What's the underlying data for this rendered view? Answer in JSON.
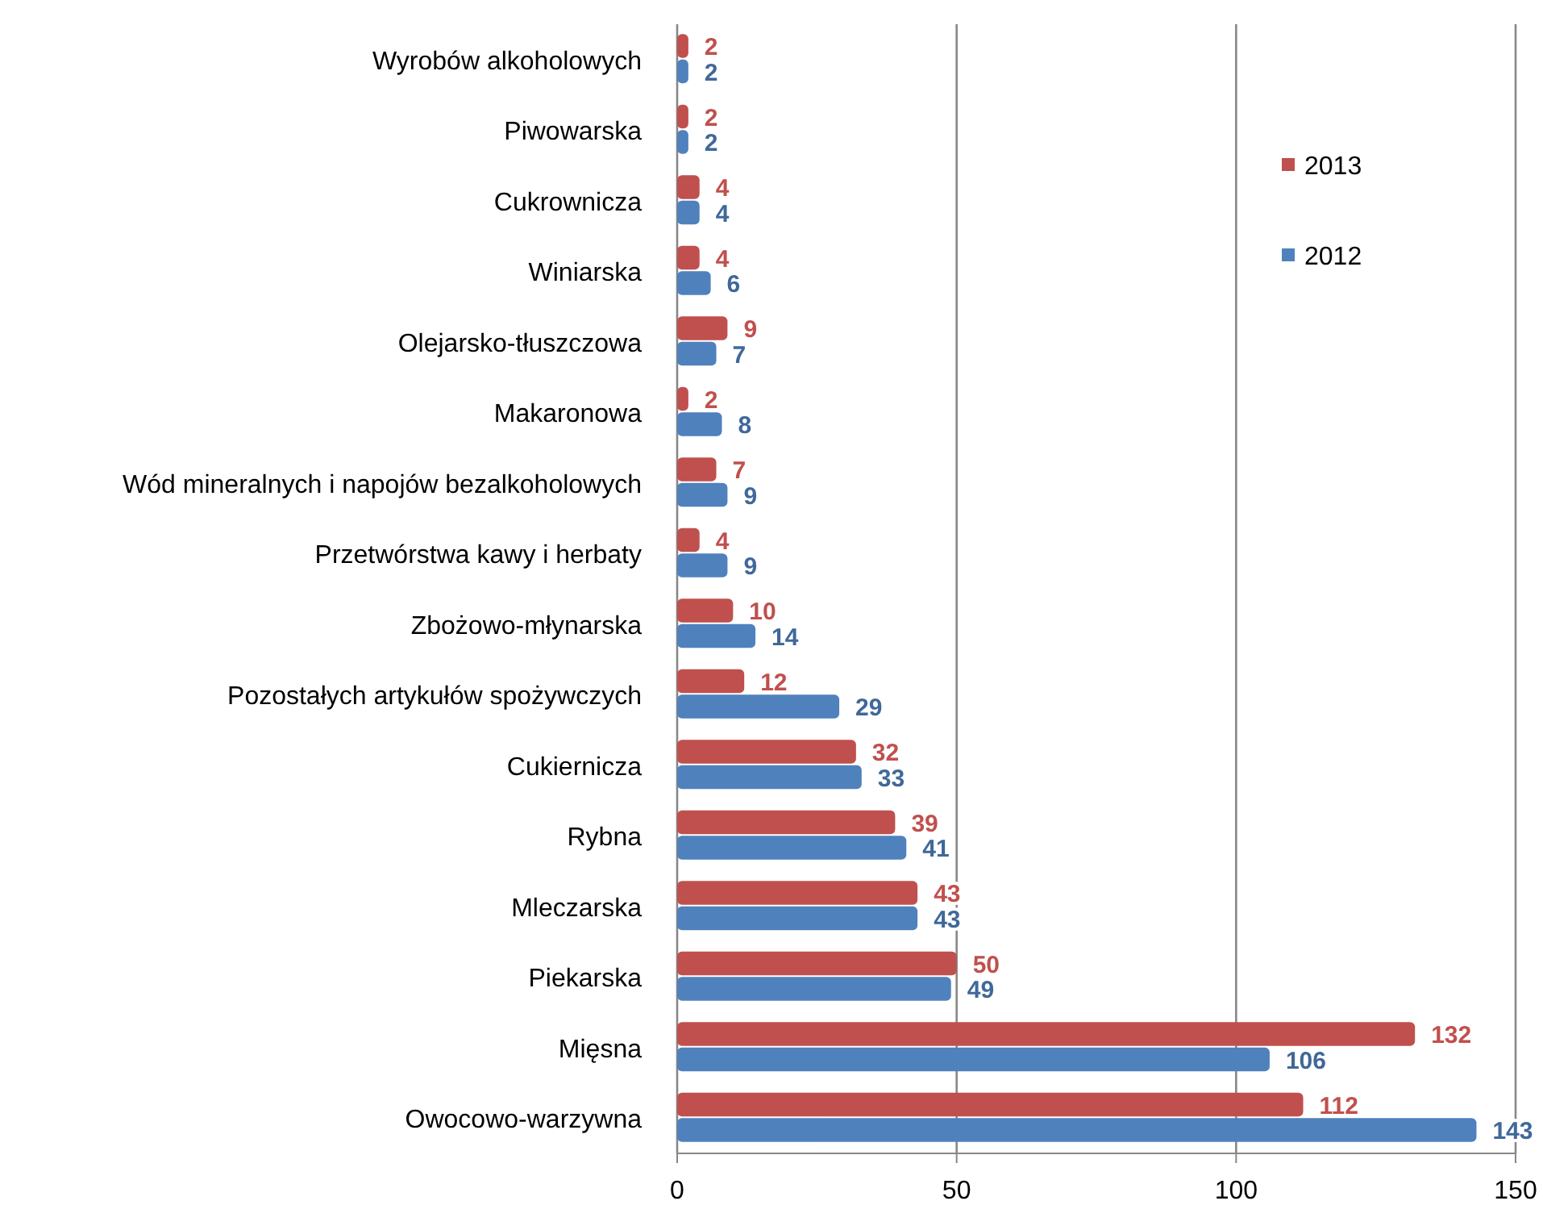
{
  "chart_data": {
    "type": "bar",
    "orientation": "horizontal",
    "categories": [
      "Wyrobów alkoholowych",
      "Piwowarska",
      "Cukrownicza",
      "Winiarska",
      "Olejarsko-tłuszczowa",
      "Makaronowa",
      "Wód mineralnych i napojów bezalkoholowych",
      "Przetwórstwa kawy i herbaty",
      "Zbożowo-młynarska",
      "Pozostałych artykułów spożywczych",
      "Cukiernicza",
      "Rybna",
      "Mleczarska",
      "Piekarska",
      "Mięsna",
      "Owocowo-warzywna"
    ],
    "series": [
      {
        "name": "2013",
        "color": "#c0504d",
        "values": [
          2,
          2,
          4,
          4,
          9,
          2,
          7,
          4,
          10,
          12,
          32,
          39,
          43,
          50,
          132,
          112
        ]
      },
      {
        "name": "2012",
        "color": "#4f81bd",
        "values": [
          2,
          2,
          4,
          6,
          7,
          8,
          9,
          9,
          14,
          29,
          33,
          41,
          43,
          49,
          106,
          143
        ]
      }
    ],
    "xlim": [
      0,
      150
    ],
    "xticks": [
      0,
      50,
      100,
      150
    ],
    "grid": "x",
    "legend": "top right",
    "data_labels": true
  }
}
